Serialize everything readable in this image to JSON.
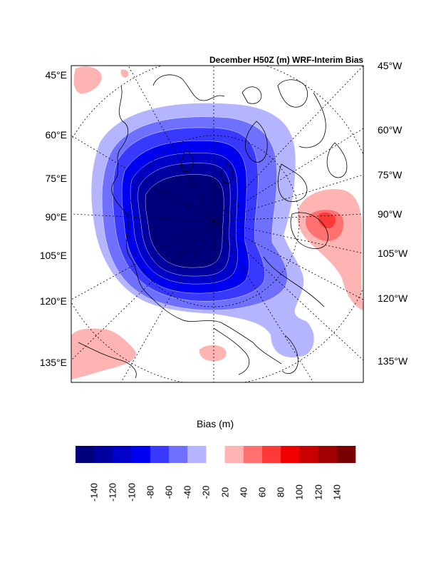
{
  "map": {
    "title": "December H50Z (m) WRF-Interim Bias",
    "projection": "polar-stereographic",
    "left_labels": [
      "45°E",
      "60°E",
      "75°E",
      "90°E",
      "105°E",
      "120°E",
      "135°E"
    ],
    "right_labels": [
      "45°W",
      "60°W",
      "75°W",
      "90°W",
      "105°W",
      "120°W",
      "135°W"
    ]
  },
  "colorbar": {
    "title": "Bias (m)",
    "tick_labels": [
      "-140",
      "-120",
      "-100",
      "-80",
      "-60",
      "-40",
      "-20",
      "20",
      "40",
      "60",
      "80",
      "100",
      "120",
      "140"
    ],
    "colors": [
      "#00007a",
      "#0000a0",
      "#0000c8",
      "#0000f0",
      "#3838ff",
      "#7070ff",
      "#b4b4ff",
      "#ffffff",
      "#ffb4b4",
      "#ff7070",
      "#ff3838",
      "#f00000",
      "#c80000",
      "#a00000",
      "#780000"
    ]
  },
  "colors": {
    "lightest_blue": "#b4b4ff",
    "light_blue": "#7070ff",
    "mid_blue": "#3838ff",
    "blue": "#0000f0",
    "deep_blue": "#0000c8",
    "darker_blue": "#0000a0",
    "darkest_blue": "#00007a",
    "light_red": "#ffb4b4",
    "mid_red": "#ff7070",
    "red": "#ff3838"
  }
}
